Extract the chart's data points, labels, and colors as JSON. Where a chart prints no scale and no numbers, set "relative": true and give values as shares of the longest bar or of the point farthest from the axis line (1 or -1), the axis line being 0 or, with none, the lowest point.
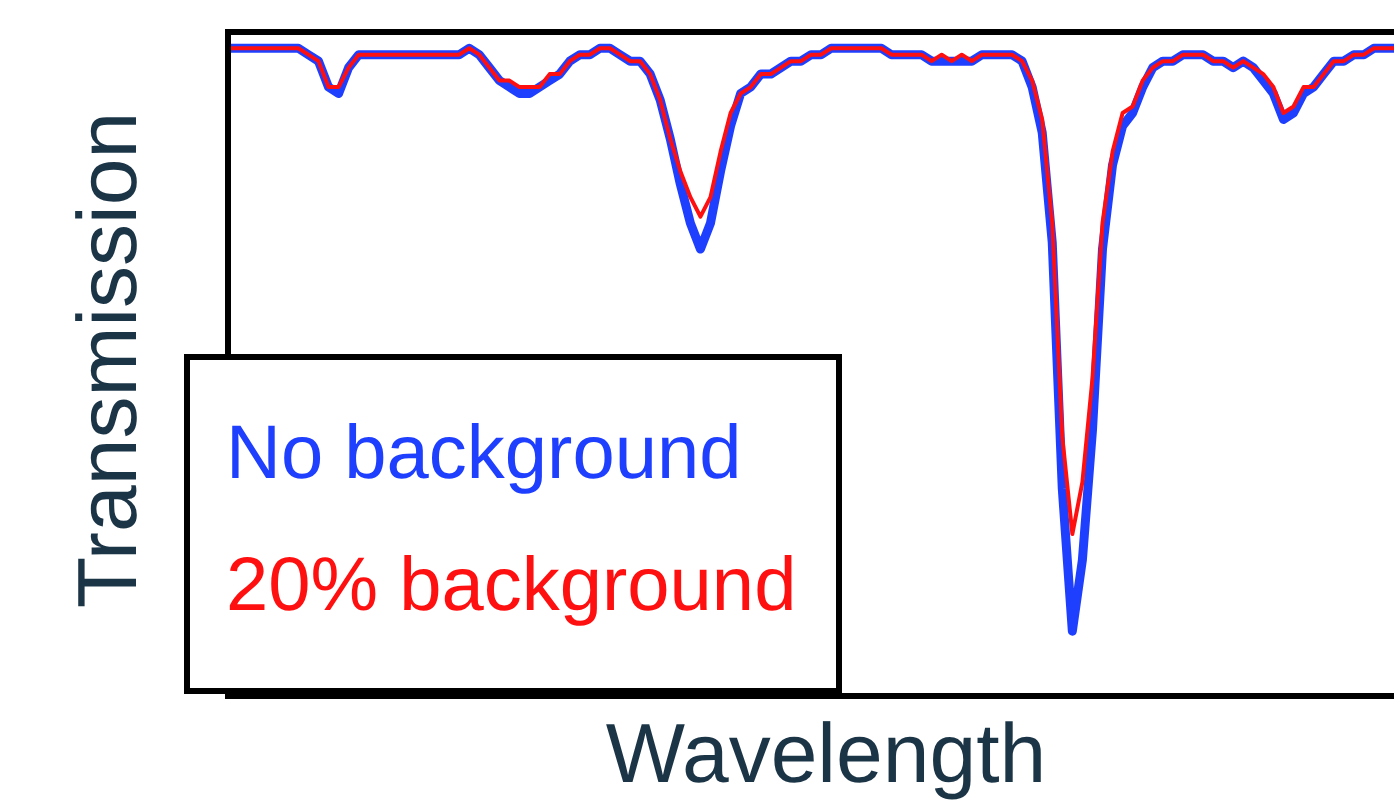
{
  "chart_data": {
    "type": "line",
    "xlabel": "Wavelength",
    "ylabel": "Transmission",
    "relative": true,
    "legend": "bottom left",
    "categories": [
      null,
      null,
      null,
      null,
      null,
      null,
      null,
      null,
      null,
      null,
      null,
      null,
      null,
      null,
      null,
      null,
      null,
      null,
      null,
      null,
      null,
      null,
      null,
      null,
      null,
      null,
      null,
      null,
      null,
      null,
      null,
      null,
      null,
      null,
      null,
      null,
      null,
      null,
      null,
      null,
      null,
      null,
      null,
      null,
      null,
      null,
      null,
      null,
      null,
      null,
      null,
      null,
      null,
      null,
      null,
      null,
      null,
      null,
      null,
      null,
      null,
      null,
      null,
      null,
      null,
      null,
      null,
      null,
      null,
      null,
      null,
      null,
      null,
      null,
      null,
      null,
      null,
      null,
      null,
      null,
      null,
      null,
      null,
      null,
      null,
      null,
      null,
      null,
      null,
      null,
      null,
      null,
      null,
      null,
      null,
      null,
      null,
      null,
      null,
      null,
      null,
      null,
      null,
      null,
      null,
      null,
      null,
      null,
      null,
      null,
      null,
      null,
      null,
      null,
      null,
      null,
      null
    ],
    "series": [
      {
        "name": "No background",
        "color": "#1f3fff",
        "values": [
          1.0,
          1.0,
          1.0,
          1.0,
          1.0,
          1.0,
          1.0,
          1.0,
          0.99,
          0.98,
          0.94,
          0.93,
          0.97,
          0.99,
          0.99,
          0.99,
          0.99,
          0.99,
          0.99,
          0.99,
          0.99,
          0.99,
          0.99,
          0.99,
          1.0,
          0.99,
          0.97,
          0.95,
          0.94,
          0.93,
          0.93,
          0.94,
          0.95,
          0.96,
          0.98,
          0.99,
          0.99,
          1.0,
          1.0,
          0.99,
          0.98,
          0.98,
          0.96,
          0.92,
          0.86,
          0.79,
          0.73,
          0.69,
          0.73,
          0.81,
          0.88,
          0.93,
          0.94,
          0.96,
          0.96,
          0.97,
          0.98,
          0.98,
          0.99,
          0.99,
          1.0,
          1.0,
          1.0,
          1.0,
          1.0,
          1.0,
          0.99,
          0.99,
          0.99,
          0.99,
          0.98,
          0.98,
          0.98,
          0.98,
          0.98,
          0.99,
          0.99,
          0.99,
          0.99,
          0.98,
          0.94,
          0.87,
          0.7,
          0.32,
          0.1,
          0.21,
          0.41,
          0.69,
          0.82,
          0.88,
          0.9,
          0.94,
          0.97,
          0.98,
          0.98,
          0.99,
          0.99,
          0.99,
          0.98,
          0.98,
          0.97,
          0.98,
          0.97,
          0.95,
          0.93,
          0.89,
          0.9,
          0.93,
          0.94,
          0.96,
          0.98,
          0.98,
          0.99,
          0.99,
          1.0,
          1.0,
          1.0
        ]
      },
      {
        "name": "20% background",
        "color": "#ff1010",
        "values": [
          1.0,
          1.0,
          1.0,
          1.0,
          1.0,
          1.0,
          1.0,
          1.0,
          0.99,
          0.98,
          0.94,
          0.94,
          0.97,
          0.99,
          0.99,
          0.99,
          0.99,
          0.99,
          0.99,
          0.99,
          0.99,
          0.99,
          0.99,
          0.99,
          1.0,
          0.99,
          0.97,
          0.95,
          0.95,
          0.94,
          0.94,
          0.94,
          0.96,
          0.96,
          0.98,
          0.99,
          0.99,
          1.0,
          1.0,
          0.99,
          0.98,
          0.98,
          0.96,
          0.92,
          0.86,
          0.81,
          0.77,
          0.74,
          0.77,
          0.84,
          0.9,
          0.93,
          0.94,
          0.96,
          0.96,
          0.97,
          0.98,
          0.98,
          0.99,
          0.99,
          1.0,
          1.0,
          1.0,
          1.0,
          1.0,
          1.0,
          0.99,
          0.99,
          0.99,
          0.99,
          0.98,
          0.99,
          0.98,
          0.99,
          0.98,
          0.99,
          0.99,
          0.99,
          0.99,
          0.98,
          0.95,
          0.89,
          0.73,
          0.4,
          0.25,
          0.33,
          0.49,
          0.73,
          0.84,
          0.9,
          0.91,
          0.95,
          0.97,
          0.98,
          0.98,
          0.99,
          0.99,
          0.99,
          0.98,
          0.98,
          0.97,
          0.98,
          0.97,
          0.96,
          0.94,
          0.9,
          0.91,
          0.94,
          0.94,
          0.96,
          0.98,
          0.98,
          0.99,
          0.99,
          1.0,
          1.0,
          1.0
        ]
      }
    ]
  }
}
